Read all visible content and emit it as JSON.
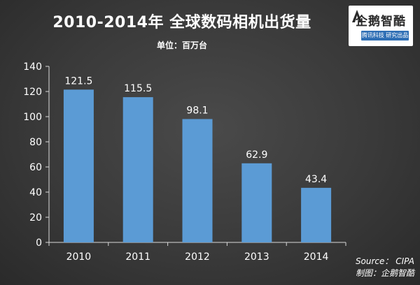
{
  "header": {
    "title": "2010-2014年 全球数码相机出货量",
    "unit": "单位：百万台"
  },
  "logo": {
    "name": "企鹅智酷",
    "tagline": "腾讯科技 研究出品"
  },
  "footer": {
    "source": "Source： CIPA",
    "credit": "制图：企鹅智酷"
  },
  "colors": {
    "bar": "#5b9bd5",
    "text": "#ffffff",
    "axis": "#d9d9d9"
  },
  "chart_data": {
    "type": "bar",
    "title": "2010-2014年 全球数码相机出货量",
    "subtitle": "单位：百万台",
    "categories": [
      "2010",
      "2011",
      "2012",
      "2013",
      "2014"
    ],
    "values": [
      121.5,
      115.5,
      98.1,
      62.9,
      43.4
    ],
    "value_labels": [
      "121.5",
      "115.5",
      "98.1",
      "62.9",
      "43.4"
    ],
    "ylim": [
      0,
      140
    ],
    "yticks": [
      0,
      20,
      40,
      60,
      80,
      100,
      120,
      140
    ],
    "grid": false,
    "legend": "none"
  }
}
